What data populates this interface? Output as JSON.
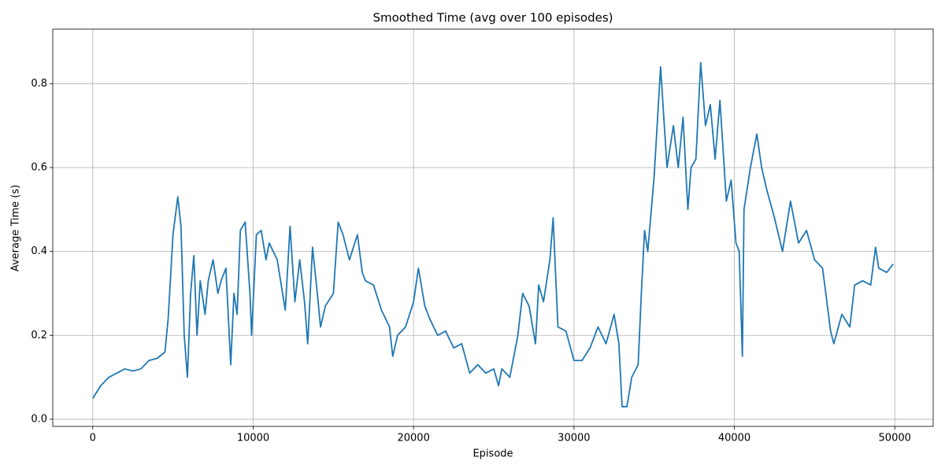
{
  "chart_data": {
    "type": "line",
    "title": "Smoothed Time (avg over 100 episodes)",
    "xlabel": "Episode",
    "ylabel": "Average Time (s)",
    "x": [
      0,
      500,
      1000,
      1500,
      2000,
      2500,
      3000,
      3500,
      4000,
      4500,
      4700,
      5000,
      5200,
      5300,
      5500,
      5700,
      5900,
      6100,
      6300,
      6500,
      6700,
      7000,
      7200,
      7500,
      7800,
      8000,
      8300,
      8600,
      8800,
      9000,
      9200,
      9500,
      9800,
      9900,
      10200,
      10500,
      10800,
      11000,
      11500,
      12000,
      12300,
      12600,
      12900,
      13200,
      13400,
      13700,
      14000,
      14200,
      14500,
      15000,
      15300,
      15600,
      16000,
      16500,
      16800,
      17000,
      17500,
      18000,
      18500,
      18700,
      19000,
      19500,
      20000,
      20300,
      20700,
      21000,
      21500,
      22000,
      22500,
      23000,
      23500,
      24000,
      24500,
      25000,
      25300,
      25500,
      26000,
      26500,
      26800,
      27200,
      27600,
      27800,
      28100,
      28500,
      28700,
      29000,
      29500,
      30000,
      30500,
      31000,
      31500,
      32000,
      32500,
      32800,
      33000,
      33300,
      33600,
      34000,
      34200,
      34400,
      34600,
      35000,
      35400,
      35800,
      36200,
      36500,
      36800,
      37100,
      37300,
      37600,
      37900,
      38200,
      38500,
      38800,
      39100,
      39500,
      39800,
      40100,
      40300,
      40500,
      40600,
      41000,
      41400,
      41700,
      42000,
      42500,
      43000,
      43500,
      44000,
      44500,
      45000,
      45500,
      46000,
      46200,
      46700,
      47200,
      47500,
      48000,
      48500,
      48800,
      49000,
      49500,
      49900
    ],
    "series": [
      {
        "name": "Smoothed Time",
        "color": "#1f77b4",
        "values": [
          0.05,
          0.08,
          0.1,
          0.11,
          0.12,
          0.115,
          0.12,
          0.14,
          0.145,
          0.16,
          0.24,
          0.44,
          0.5,
          0.53,
          0.46,
          0.2,
          0.1,
          0.3,
          0.39,
          0.2,
          0.33,
          0.25,
          0.33,
          0.38,
          0.3,
          0.33,
          0.36,
          0.13,
          0.3,
          0.25,
          0.45,
          0.47,
          0.3,
          0.2,
          0.44,
          0.45,
          0.38,
          0.42,
          0.38,
          0.26,
          0.46,
          0.28,
          0.38,
          0.28,
          0.18,
          0.41,
          0.3,
          0.22,
          0.27,
          0.3,
          0.47,
          0.44,
          0.38,
          0.44,
          0.35,
          0.33,
          0.32,
          0.26,
          0.22,
          0.15,
          0.2,
          0.22,
          0.28,
          0.36,
          0.27,
          0.24,
          0.2,
          0.21,
          0.17,
          0.18,
          0.11,
          0.13,
          0.11,
          0.12,
          0.08,
          0.12,
          0.1,
          0.2,
          0.3,
          0.27,
          0.18,
          0.32,
          0.28,
          0.38,
          0.48,
          0.22,
          0.21,
          0.14,
          0.14,
          0.17,
          0.22,
          0.18,
          0.25,
          0.18,
          0.03,
          0.03,
          0.1,
          0.13,
          0.3,
          0.45,
          0.4,
          0.58,
          0.84,
          0.6,
          0.7,
          0.6,
          0.72,
          0.5,
          0.6,
          0.62,
          0.85,
          0.7,
          0.75,
          0.62,
          0.76,
          0.52,
          0.57,
          0.42,
          0.4,
          0.15,
          0.5,
          0.6,
          0.68,
          0.6,
          0.55,
          0.48,
          0.4,
          0.52,
          0.42,
          0.45,
          0.38,
          0.36,
          0.21,
          0.18,
          0.25,
          0.22,
          0.32,
          0.33,
          0.32,
          0.41,
          0.36,
          0.35,
          0.37
        ]
      }
    ],
    "xlim": [
      -2495,
      52395
    ],
    "ylim": [
      -0.017,
      0.93
    ],
    "xticks": [
      0,
      10000,
      20000,
      30000,
      40000,
      50000
    ],
    "yticks": [
      {
        "value": 0,
        "label": "0.0"
      },
      0.2,
      0.4,
      0.6,
      0.8
    ],
    "grid": true
  }
}
